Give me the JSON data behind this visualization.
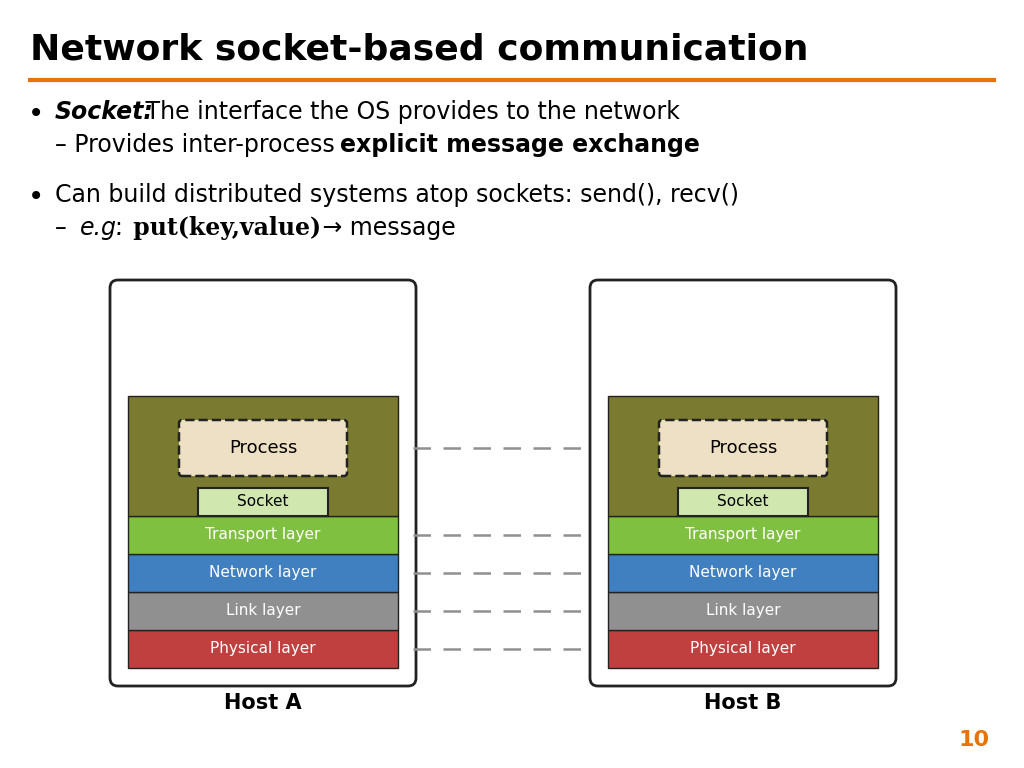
{
  "title": "Network socket-based communication",
  "title_color": "#000000",
  "title_fontsize": 26,
  "orange_line_color": "#E8730A",
  "bullet1_bold": "Socket:",
  "bullet1_text": " The interface the OS provides to the network",
  "bullet1_sub": "– Provides inter-process ",
  "bullet1_sub_bold": "explicit message exchange",
  "bullet2_text": "Can build distributed systems atop sockets: send(), recv()",
  "bullet2_sub_plain": "– ",
  "bullet2_sub_italic": "e.g.",
  "bullet2_sub_plain2": ": ",
  "bullet2_sub_code": "put(key,value)",
  "bullet2_sub_arrow": " → ",
  "bullet2_sub_end": "message",
  "layer_colors": [
    "#7A7A30",
    "#80C040",
    "#4080C0",
    "#909090",
    "#C04040"
  ],
  "process_color": "#EDE0C4",
  "socket_color": "#D0E8B0",
  "host_a_label": "Host A",
  "host_b_label": "Host B",
  "arrow_color": "#909090",
  "page_num": "10",
  "page_num_color": "#E8730A",
  "background_color": "#FFFFFF"
}
